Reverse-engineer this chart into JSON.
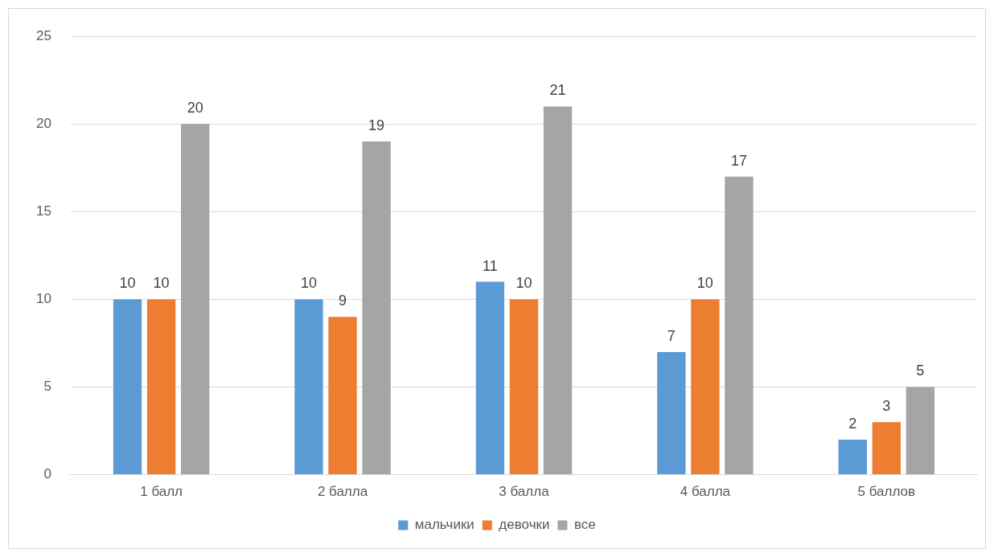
{
  "chart_data": {
    "type": "bar",
    "categories": [
      "1 балл",
      "2 балла",
      "3 балла",
      "4 балла",
      "5 баллов"
    ],
    "series": [
      {
        "name": "мальчики",
        "color": "#5b9bd5",
        "values": [
          10,
          10,
          11,
          7,
          2
        ]
      },
      {
        "name": "девочки",
        "color": "#ed7d31",
        "values": [
          10,
          9,
          10,
          10,
          3
        ]
      },
      {
        "name": "все",
        "color": "#a5a5a5",
        "values": [
          20,
          19,
          21,
          17,
          5
        ]
      }
    ],
    "ylim": [
      0,
      25
    ],
    "yticks": [
      0,
      5,
      10,
      15,
      20,
      25
    ],
    "grid": "y",
    "legend": "bottom",
    "data_labels": true
  }
}
